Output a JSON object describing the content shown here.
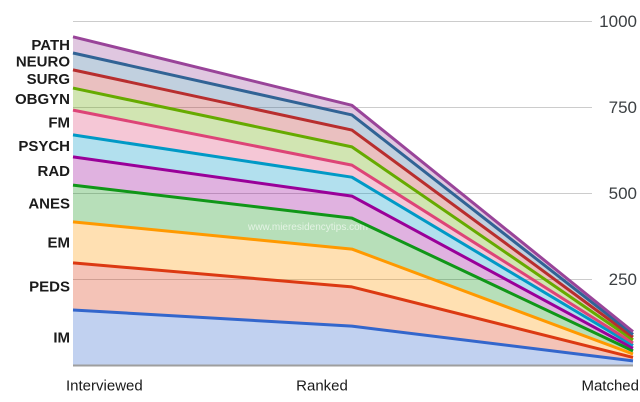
{
  "chart_data": {
    "type": "area",
    "stacked": true,
    "title": "",
    "categories": [
      "Interviewed",
      "Ranked",
      "Matched"
    ],
    "series": [
      {
        "name": "IM",
        "color": "#3366CC",
        "values": [
          160,
          113,
          12
        ]
      },
      {
        "name": "PEDS",
        "color": "#DC3912",
        "values": [
          137,
          114,
          10
        ]
      },
      {
        "name": "EM",
        "color": "#FF9900",
        "values": [
          119,
          110,
          10
        ]
      },
      {
        "name": "ANES",
        "color": "#109618",
        "values": [
          107,
          90,
          9
        ]
      },
      {
        "name": "RAD",
        "color": "#990099",
        "values": [
          82,
          64,
          8
        ]
      },
      {
        "name": "PSYCH",
        "color": "#0099C6",
        "values": [
          64,
          55,
          8
        ]
      },
      {
        "name": "FM",
        "color": "#DD4477",
        "values": [
          72,
          35,
          7
        ]
      },
      {
        "name": "OBGYN",
        "color": "#66AA00",
        "values": [
          64,
          53,
          9
        ]
      },
      {
        "name": "SURG",
        "color": "#B82E2E",
        "values": [
          53,
          49,
          8
        ]
      },
      {
        "name": "NEURO",
        "color": "#316395",
        "values": [
          49,
          44,
          8
        ]
      },
      {
        "name": "PATH",
        "color": "#994499",
        "values": [
          47,
          28,
          8
        ]
      }
    ],
    "y_ticks": [
      250,
      500,
      750,
      1000
    ],
    "ylim": [
      0,
      1000
    ],
    "fill_opacity": 0.3,
    "grid": true,
    "legend_position": "left-inline",
    "watermark": "www.mieresidencytips.com",
    "colors": {
      "gridline": "#cccccc",
      "baseline": "#9e9e9e",
      "axis_text": "#3c4043",
      "label_text": "#1b1b1b"
    }
  }
}
